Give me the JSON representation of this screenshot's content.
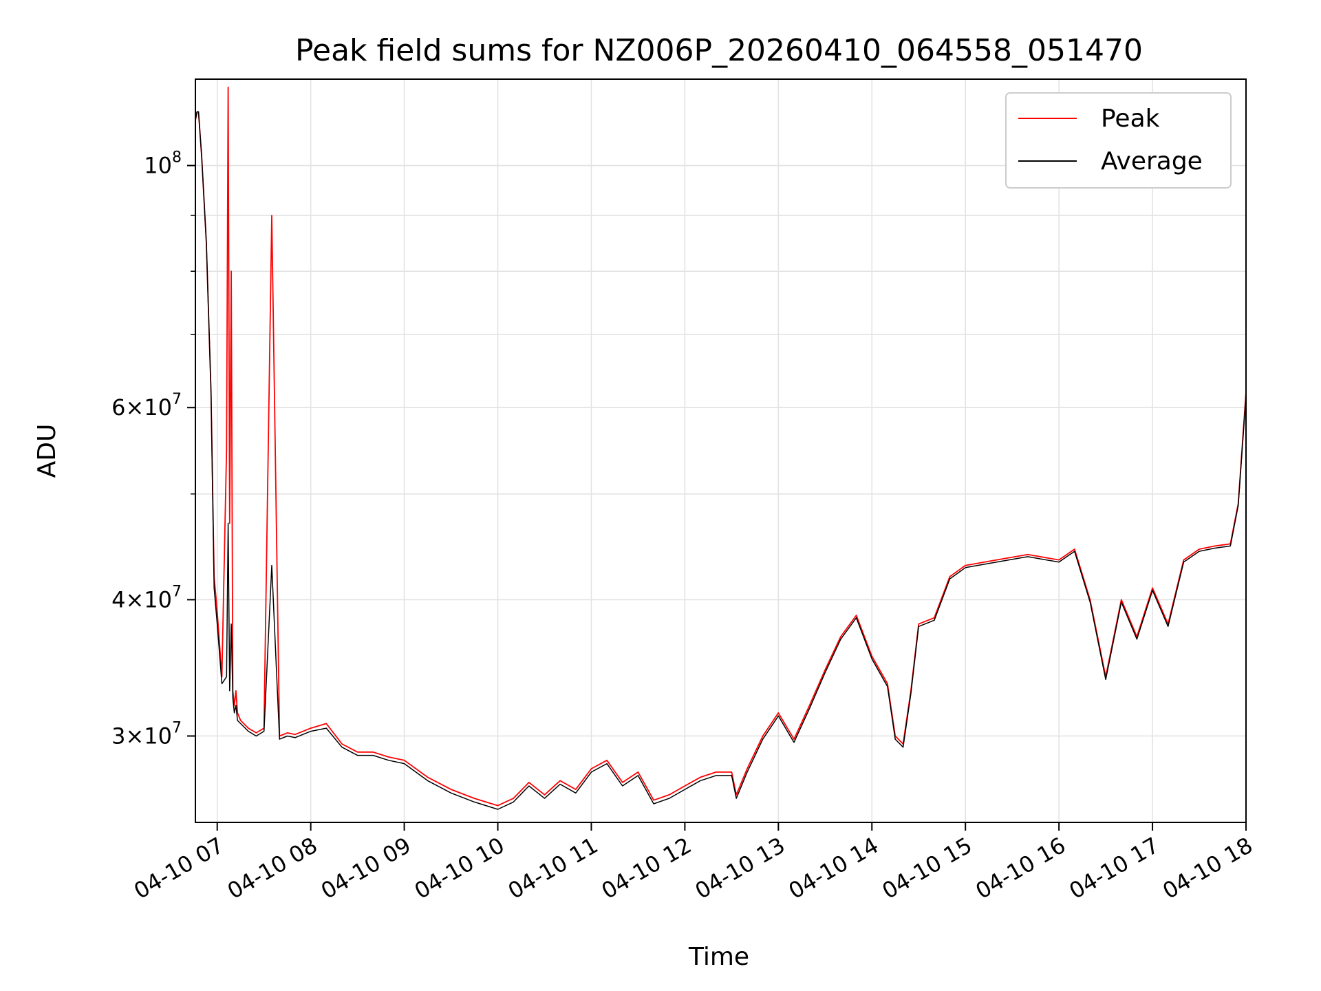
{
  "chart_data": {
    "type": "line",
    "title": "Peak field sums for NZ006P_20260410_064558_051470",
    "xlabel": "Time",
    "ylabel": "ADU",
    "y_scale": "log",
    "ylim": [
      25000000,
      120000000
    ],
    "xlim": [
      "04-10 06:46",
      "04-10 18:00"
    ],
    "grid": true,
    "legend_position": "top-right",
    "x_ticks": [
      "04-10 07",
      "04-10 08",
      "04-10 09",
      "04-10 10",
      "04-10 11",
      "04-10 12",
      "04-10 13",
      "04-10 14",
      "04-10 15",
      "04-10 16",
      "04-10 17",
      "04-10 18"
    ],
    "y_ticks": [
      {
        "value": 30000000,
        "mantissa": "3",
        "exp": "7"
      },
      {
        "value": 40000000,
        "mantissa": "4",
        "exp": "7"
      },
      {
        "value": 60000000,
        "mantissa": "6",
        "exp": "7"
      },
      {
        "value": 100000000,
        "mantissa": "",
        "exp": "8"
      }
    ],
    "series": [
      {
        "name": "Peak",
        "color": "#ff0000",
        "x": [
          "06:46",
          "06:47",
          "06:48",
          "06:50",
          "06:53",
          "06:56",
          "06:58",
          "07:00",
          "07:03",
          "07:06",
          "07:07",
          "07:08",
          "07:09",
          "07:10",
          "07:11",
          "07:12",
          "07:13",
          "07:15",
          "07:20",
          "07:25",
          "07:30",
          "07:35",
          "07:40",
          "07:45",
          "07:50",
          "08:00",
          "08:10",
          "08:20",
          "08:30",
          "08:40",
          "08:50",
          "09:00",
          "09:15",
          "09:30",
          "09:45",
          "10:00",
          "10:10",
          "10:20",
          "10:30",
          "10:40",
          "10:50",
          "11:00",
          "11:10",
          "11:20",
          "11:30",
          "11:40",
          "11:50",
          "12:00",
          "12:10",
          "12:20",
          "12:30",
          "12:33",
          "12:40",
          "12:50",
          "13:00",
          "13:10",
          "13:20",
          "13:30",
          "13:40",
          "13:50",
          "14:00",
          "14:10",
          "14:15",
          "14:20",
          "14:25",
          "14:30",
          "14:40",
          "14:50",
          "15:00",
          "15:20",
          "15:40",
          "16:00",
          "16:10",
          "16:20",
          "16:30",
          "16:40",
          "16:50",
          "17:00",
          "17:10",
          "17:20",
          "17:30",
          "17:40",
          "17:50",
          "17:55",
          "18:00"
        ],
        "y": [
          110000000,
          112000000,
          112000000,
          102000000,
          85000000,
          62000000,
          42000000,
          39000000,
          34000000,
          55000000,
          118000000,
          47000000,
          80000000,
          33000000,
          32000000,
          33000000,
          31500000,
          31000000,
          30500000,
          30200000,
          30500000,
          90000000,
          30000000,
          30200000,
          30100000,
          30500000,
          30800000,
          29500000,
          29000000,
          29000000,
          28700000,
          28500000,
          27500000,
          26800000,
          26300000,
          25900000,
          26300000,
          27200000,
          26500000,
          27300000,
          26800000,
          28000000,
          28500000,
          27200000,
          27800000,
          26200000,
          26500000,
          27000000,
          27500000,
          27800000,
          27800000,
          26500000,
          28000000,
          30000000,
          31500000,
          29800000,
          32000000,
          34500000,
          37000000,
          38700000,
          35500000,
          33500000,
          30000000,
          29500000,
          33000000,
          38000000,
          38500000,
          42000000,
          43000000,
          43500000,
          44000000,
          43500000,
          44500000,
          40000000,
          34000000,
          40000000,
          37000000,
          41000000,
          38000000,
          43500000,
          44500000,
          44800000,
          45000000,
          49000000,
          62000000
        ]
      },
      {
        "name": "Average",
        "color": "#000000",
        "x": [
          "06:46",
          "06:47",
          "06:48",
          "06:50",
          "06:53",
          "06:56",
          "06:58",
          "07:00",
          "07:03",
          "07:06",
          "07:07",
          "07:08",
          "07:09",
          "07:10",
          "07:11",
          "07:12",
          "07:13",
          "07:15",
          "07:20",
          "07:25",
          "07:30",
          "07:35",
          "07:40",
          "07:45",
          "07:50",
          "08:00",
          "08:10",
          "08:20",
          "08:30",
          "08:40",
          "08:50",
          "09:00",
          "09:15",
          "09:30",
          "09:45",
          "10:00",
          "10:10",
          "10:20",
          "10:30",
          "10:40",
          "10:50",
          "11:00",
          "11:10",
          "11:20",
          "11:30",
          "11:40",
          "11:50",
          "12:00",
          "12:10",
          "12:20",
          "12:30",
          "12:33",
          "12:40",
          "12:50",
          "13:00",
          "13:10",
          "13:20",
          "13:30",
          "13:40",
          "13:50",
          "14:00",
          "14:10",
          "14:15",
          "14:20",
          "14:25",
          "14:30",
          "14:40",
          "14:50",
          "15:00",
          "15:20",
          "15:40",
          "16:00",
          "16:10",
          "16:20",
          "16:30",
          "16:40",
          "16:50",
          "17:00",
          "17:10",
          "17:20",
          "17:30",
          "17:40",
          "17:50",
          "17:55",
          "18:00"
        ],
        "y": [
          110000000,
          112000000,
          112000000,
          102000000,
          85000000,
          62000000,
          41000000,
          38000000,
          33500000,
          34000000,
          47000000,
          33000000,
          38000000,
          32500000,
          31500000,
          32000000,
          31000000,
          30800000,
          30300000,
          30000000,
          30300000,
          43000000,
          29800000,
          30000000,
          29900000,
          30300000,
          30500000,
          29300000,
          28800000,
          28800000,
          28500000,
          28300000,
          27300000,
          26600000,
          26100000,
          25700000,
          26100000,
          27000000,
          26300000,
          27100000,
          26600000,
          27800000,
          28300000,
          27000000,
          27600000,
          26000000,
          26300000,
          26800000,
          27300000,
          27600000,
          27600000,
          26300000,
          27800000,
          29800000,
          31300000,
          29600000,
          31800000,
          34300000,
          36800000,
          38500000,
          35300000,
          33300000,
          29800000,
          29300000,
          32800000,
          37800000,
          38300000,
          41800000,
          42800000,
          43300000,
          43800000,
          43300000,
          44300000,
          39800000,
          33800000,
          39800000,
          36800000,
          40800000,
          37800000,
          43300000,
          44300000,
          44600000,
          44800000,
          48800000,
          61500000
        ]
      }
    ]
  }
}
